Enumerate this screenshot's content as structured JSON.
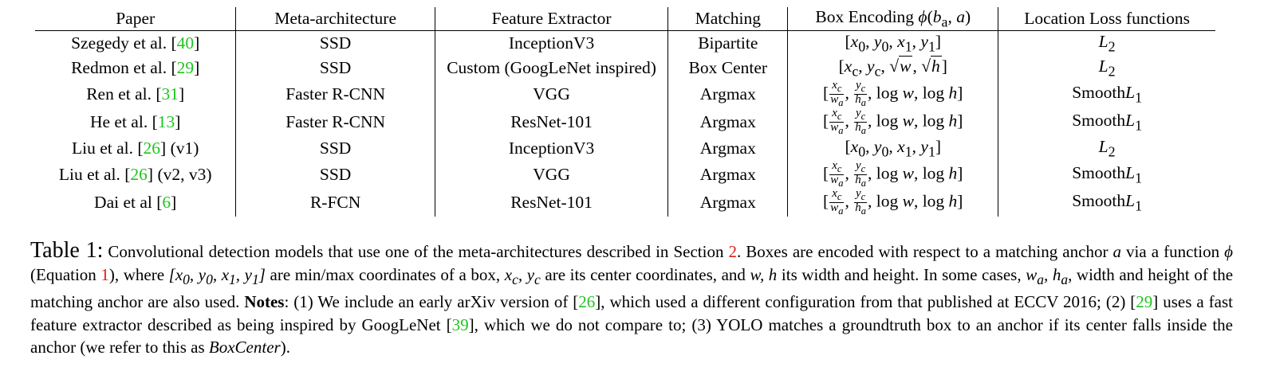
{
  "table": {
    "headers": [
      "Paper",
      "Meta-architecture",
      "Feature Extractor",
      "Matching",
      "Box Encoding ϕ(b_a, a)",
      "Location Loss functions"
    ],
    "rows": [
      {
        "author": "Szegedy et al. [",
        "cite": "40",
        "suffix": "]",
        "meta": "SSD",
        "feature": "InceptionV3",
        "matching": "Bipartite",
        "encoding": "[x0, y0, x1, y1]",
        "loss": "L2"
      },
      {
        "author": "Redmon et al. [",
        "cite": "29",
        "suffix": "]",
        "meta": "SSD",
        "feature": "Custom (GoogLeNet inspired)",
        "matching": "Box Center",
        "encoding": "[xc, yc, √w, √h]",
        "loss": "L2"
      },
      {
        "author": "Ren et al. [",
        "cite": "31",
        "suffix": "]",
        "meta": "Faster R-CNN",
        "feature": "VGG",
        "matching": "Argmax",
        "encoding": "[xc/wa, yc/ha, log w, log h]",
        "loss": "SmoothL1"
      },
      {
        "author": "He et al. [",
        "cite": "13",
        "suffix": "]",
        "meta": "Faster R-CNN",
        "feature": "ResNet-101",
        "matching": "Argmax",
        "encoding": "[xc/wa, yc/ha, log w, log h]",
        "loss": "SmoothL1"
      },
      {
        "author": "Liu et al. [",
        "cite": "26",
        "suffix": "] (v1)",
        "meta": "SSD",
        "feature": "InceptionV3",
        "matching": "Argmax",
        "encoding": "[x0, y0, x1, y1]",
        "loss": "L2"
      },
      {
        "author": "Liu et al. [",
        "cite": "26",
        "suffix": "] (v2, v3)",
        "meta": "SSD",
        "feature": "VGG",
        "matching": "Argmax",
        "encoding": "[xc/wa, yc/ha, log w, log h]",
        "loss": "SmoothL1"
      },
      {
        "author": "Dai et al [",
        "cite": "6",
        "suffix": "]",
        "meta": "R-FCN",
        "feature": "ResNet-101",
        "matching": "Argmax",
        "encoding": "[xc/wa, yc/ha, log w, log h]",
        "loss": "SmoothL1"
      }
    ]
  },
  "caption": {
    "label": "Table 1:",
    "t1": " Convolutional detection models that use one of the meta-architectures described in Section ",
    "r_section": "2",
    "t2": ". Boxes are encoded with respect to a matching anchor ",
    "m_a": "a",
    "t3": " via a function ",
    "m_phi": "ϕ",
    "t4": " (Equation ",
    "r_eq": "1",
    "t5": "), where ",
    "m_box": "[x0, y0, x1, y1]",
    "t6": " are min/max coordinates of a box, ",
    "m_center": "xc, yc",
    "t7": " are its center coordinates, and ",
    "m_wh": "w, h",
    "t8": " its width and height. In some cases, ",
    "m_anchor": "wa, ha",
    "t9": ", width and height of the matching anchor are also used. ",
    "notes": "Notes",
    "t10": ": (1) We include an early arXiv version of [",
    "c26": "26",
    "t11": "], which used a different configuration from that published at ECCV 2016; (2) [",
    "c29": "29",
    "t12": "] uses a fast feature extractor described as being inspired by GoogLeNet [",
    "c39": "39",
    "t13": "], which we do not compare to; (3) YOLO matches a groundtruth box to an anchor if its center falls inside the anchor (we refer to this as ",
    "boxcenter": "BoxCenter",
    "t14": ")."
  }
}
